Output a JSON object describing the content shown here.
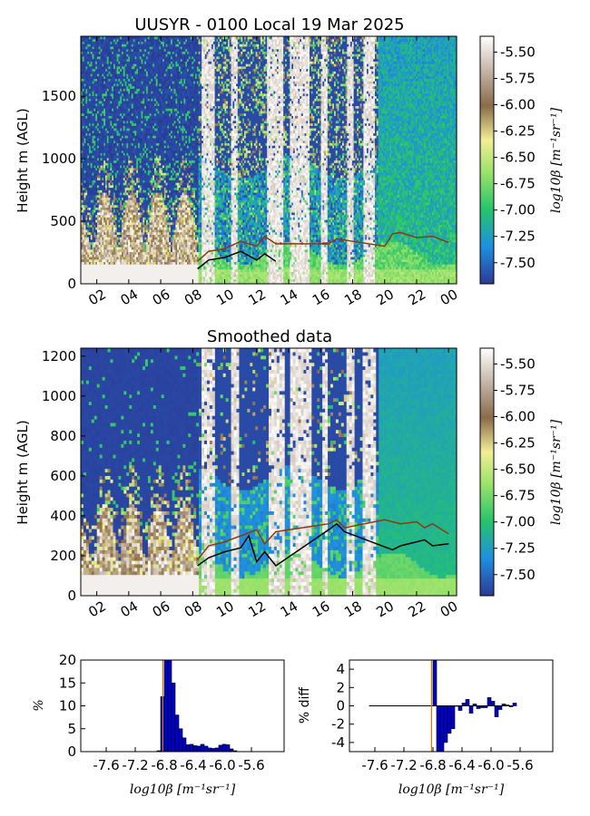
{
  "colors": {
    "low": "#2b3a97",
    "mid1": "#1f8fe0",
    "mid2": "#25c46b",
    "mid3": "#9be26a",
    "mid4": "#f2ee95",
    "mid5": "#8a6a4b",
    "high": "#ffffff",
    "hist_bar": "#0000cc",
    "mode_line": "#cc7a00",
    "cloudbase_line": "#000000",
    "top_line": "#8b3a0f"
  },
  "chart_data": [
    {
      "type": "heatmap",
      "title": "UUSYR - 0100 Local 19 Mar 2025",
      "xlabel": "",
      "ylabel": "Height m (AGL)",
      "x_ticks": [
        "02",
        "04",
        "06",
        "08",
        "10",
        "12",
        "14",
        "16",
        "18",
        "20",
        "22",
        "00"
      ],
      "y_ticks": [
        "0",
        "500",
        "1000",
        "1500"
      ],
      "ylim": [
        0,
        1980
      ],
      "colorbar": {
        "label": "log10β [m⁻¹sr⁻¹]",
        "ticks": [
          "-5.50",
          "-5.75",
          "-6.00",
          "-6.25",
          "-6.50",
          "-6.75",
          "-7.00",
          "-7.25",
          "-7.50"
        ],
        "range": [
          -7.7,
          -5.35
        ]
      },
      "cloud_base_line": {
        "x_hours": [
          8.3,
          9,
          10,
          11,
          12,
          12.5,
          13.2
        ],
        "heights": [
          120,
          190,
          210,
          260,
          190,
          240,
          180
        ]
      },
      "layer_top_line": {
        "x_hours": [
          8.3,
          9,
          10,
          11,
          12,
          12.5,
          13.2,
          16.5,
          17,
          20,
          20.5,
          21,
          22,
          23,
          24
        ],
        "heights": [
          180,
          260,
          280,
          340,
          300,
          380,
          320,
          320,
          360,
          300,
          400,
          410,
          370,
          380,
          330
        ]
      }
    },
    {
      "type": "heatmap",
      "title": "Smoothed data",
      "xlabel": "",
      "ylabel": "Height m (AGL)",
      "x_ticks": [
        "02",
        "04",
        "06",
        "08",
        "10",
        "12",
        "14",
        "16",
        "18",
        "20",
        "22",
        "00"
      ],
      "y_ticks": [
        "0",
        "200",
        "400",
        "600",
        "800",
        "1000",
        "1200"
      ],
      "ylim": [
        0,
        1240
      ],
      "colorbar": {
        "label": "log10β [m⁻¹sr⁻¹]",
        "ticks": [
          "-5.50",
          "-5.75",
          "-6.00",
          "-6.25",
          "-6.50",
          "-6.75",
          "-7.00",
          "-7.25",
          "-7.50"
        ],
        "range": [
          -7.7,
          -5.35
        ]
      },
      "cloud_base_line": {
        "x_hours": [
          8.3,
          9,
          10,
          11,
          11.5,
          12,
          12.5,
          13.2,
          16.5,
          17,
          17.5,
          20.5,
          21,
          22,
          22.5,
          23,
          24
        ],
        "heights": [
          150,
          190,
          220,
          240,
          300,
          170,
          220,
          150,
          330,
          360,
          320,
          230,
          250,
          270,
          280,
          250,
          260
        ]
      },
      "layer_top_line": {
        "x_hours": [
          8.3,
          9,
          10,
          11,
          12,
          12.5,
          13.2,
          16.5,
          17,
          17.5,
          20,
          20.5,
          21,
          22,
          22.5,
          23,
          24
        ],
        "heights": [
          180,
          250,
          270,
          300,
          330,
          260,
          320,
          360,
          380,
          340,
          380,
          370,
          360,
          370,
          340,
          360,
          310
        ]
      }
    },
    {
      "type": "bar",
      "title": "",
      "xlabel": "log10β [m⁻¹sr⁻¹]",
      "ylabel": "%",
      "x_ticks": [
        "-7.6",
        "-7.2",
        "-6.8",
        "-6.4",
        "-6.0",
        "-5.6"
      ],
      "xlim": [
        -7.95,
        -5.15
      ],
      "y_ticks": [
        "0",
        "5",
        "10",
        "15",
        "20"
      ],
      "ylim": [
        0,
        20
      ],
      "bin_width": 0.05,
      "x": [
        -6.9,
        -6.85,
        -6.8,
        -6.75,
        -6.7,
        -6.65,
        -6.6,
        -6.55,
        -6.5,
        -6.45,
        -6.4,
        -6.35,
        -6.3,
        -6.25,
        -6.2,
        -6.15,
        -6.1,
        -6.05,
        -6.0,
        -5.95,
        -5.9,
        -5.85
      ],
      "values": [
        0.2,
        12,
        20,
        25,
        15,
        8,
        5,
        3,
        1.5,
        1.6,
        1.3,
        1.2,
        1.6,
        1.2,
        0.8,
        0.7,
        0.8,
        1.4,
        1.6,
        1.5,
        0.6,
        0.2
      ],
      "mode_line_x": -6.82
    },
    {
      "type": "bar",
      "title": "",
      "xlabel": "log10β [m⁻¹sr⁻¹]",
      "ylabel": "% diff",
      "x_ticks": [
        "-7.6",
        "-7.2",
        "-6.8",
        "-6.4",
        "-6.0",
        "-5.6"
      ],
      "xlim": [
        -7.95,
        -5.15
      ],
      "y_ticks": [
        "-4",
        "-2",
        "0",
        "2",
        "4"
      ],
      "ylim": [
        -5,
        5
      ],
      "bin_width": 0.05,
      "x": [
        -6.8,
        -6.75,
        -6.7,
        -6.65,
        -6.6,
        -6.55,
        -6.5,
        -6.45,
        -6.4,
        -6.35,
        -6.3,
        -6.25,
        -6.2,
        -6.15,
        -6.1,
        -6.05,
        -6.0,
        -5.95,
        -5.9,
        -5.85,
        -5.8,
        -5.75,
        -5.7
      ],
      "values": [
        6,
        -5,
        -5,
        -4,
        -3,
        -2.5,
        0,
        -0.5,
        0.3,
        0.7,
        -0.8,
        0.2,
        -0.3,
        -0.2,
        -0.2,
        0.9,
        0.5,
        -1.2,
        -0.4,
        0.2,
        0.1,
        -0.1,
        0.3
      ],
      "baseline_x_range": [
        -7.68,
        -5.7
      ],
      "mode_line_x": -6.82
    }
  ]
}
